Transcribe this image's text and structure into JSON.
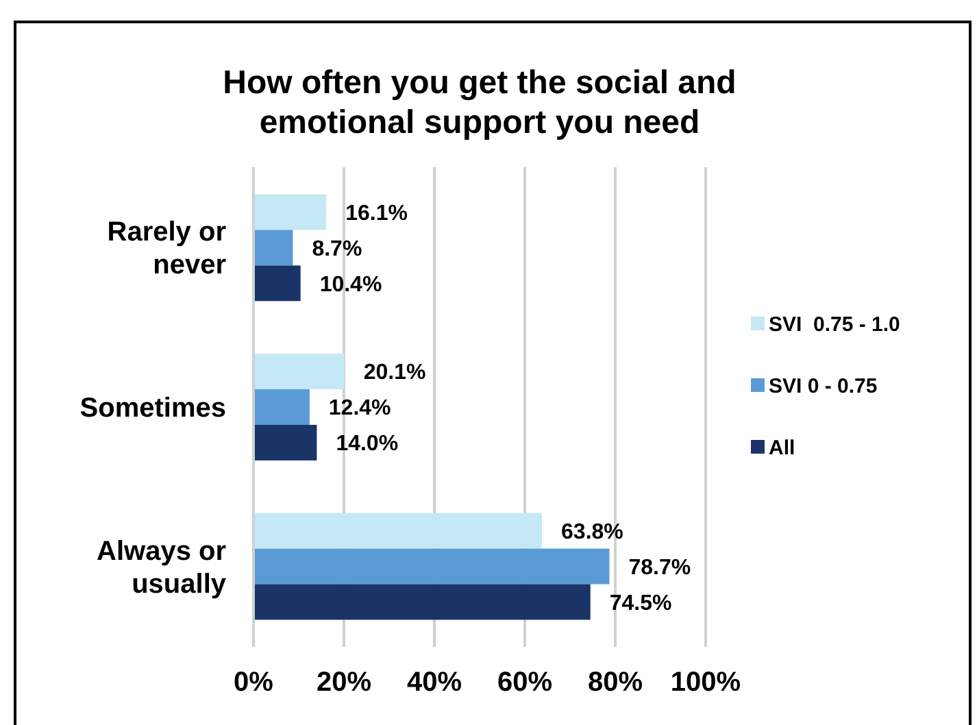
{
  "chart_data": {
    "type": "bar",
    "orientation": "horizontal",
    "title": "How often you get the social and emotional support you need",
    "categories": [
      "Rarely or never",
      "Sometimes",
      "Always or usually"
    ],
    "series": [
      {
        "name": "SVI  0.75 - 1.0",
        "color": "#c5e8f6",
        "values": [
          16.1,
          20.1,
          63.8
        ],
        "value_labels": [
          "16.1%",
          "20.1%",
          "63.8%"
        ]
      },
      {
        "name": "SVI 0 - 0.75",
        "color": "#5b9bd5",
        "values": [
          8.7,
          12.4,
          78.7
        ],
        "value_labels": [
          "8.7%",
          "12.4%",
          "78.7%"
        ]
      },
      {
        "name": "All",
        "color": "#1b3468",
        "values": [
          10.4,
          14.0,
          74.5
        ],
        "value_labels": [
          "10.4%",
          "14.0%",
          "74.5%"
        ]
      }
    ],
    "xlim": [
      0,
      100
    ],
    "xticks": [
      {
        "value": 0,
        "label": "0%"
      },
      {
        "value": 20,
        "label": "20%"
      },
      {
        "value": 40,
        "label": "40%"
      },
      {
        "value": 60,
        "label": "60%"
      },
      {
        "value": 80,
        "label": "80%"
      },
      {
        "value": 100,
        "label": "100%"
      }
    ],
    "grid": "x",
    "legend": "right"
  }
}
